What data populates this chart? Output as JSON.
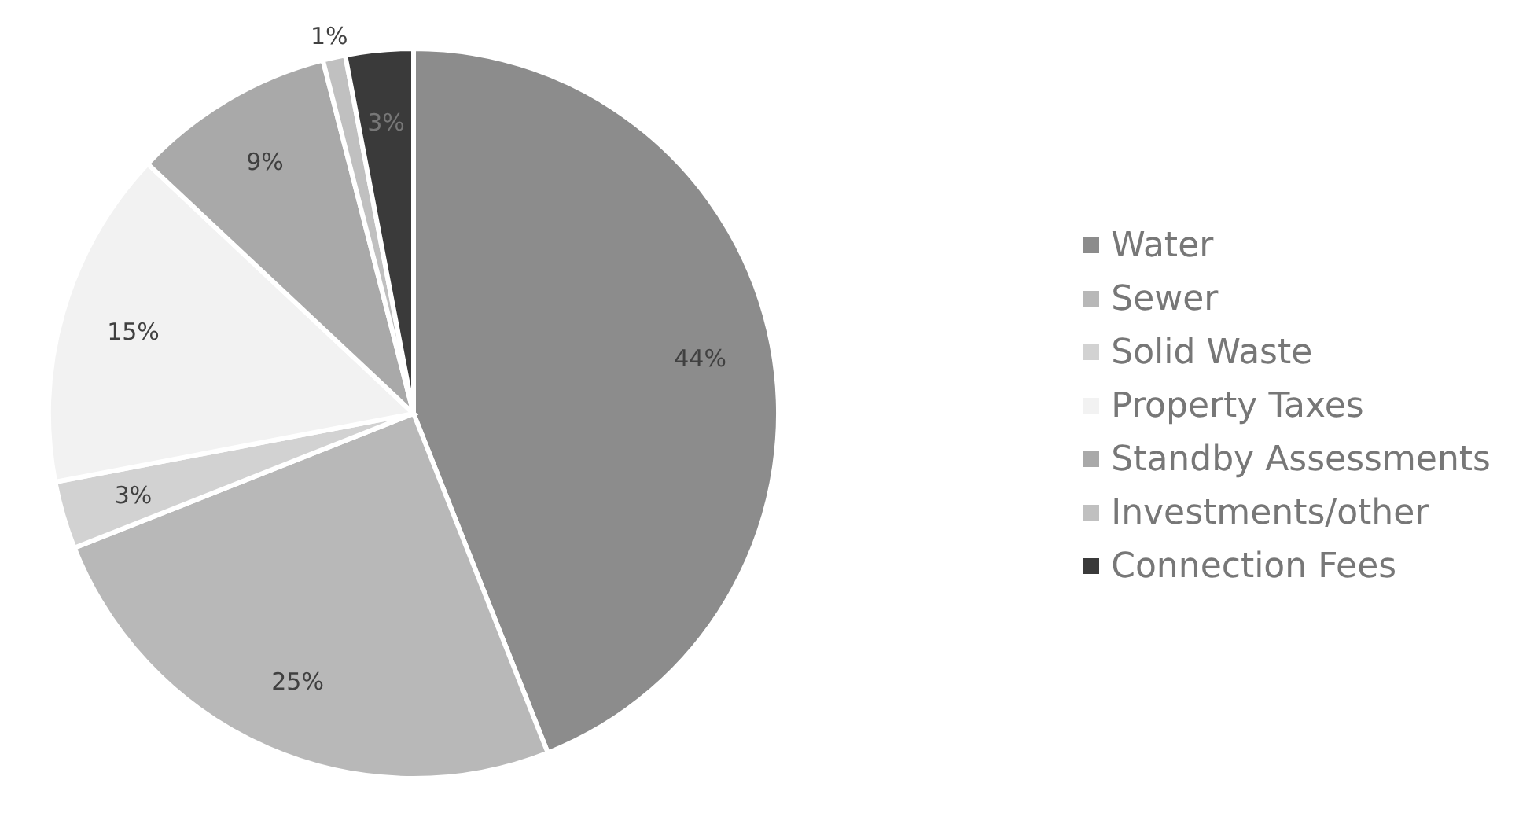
{
  "chart_data": {
    "type": "pie",
    "categories": [
      "Water",
      "Sewer",
      "Solid Waste",
      "Property Taxes",
      "Standby Assessments",
      "Investments/other",
      "Connection Fees"
    ],
    "values": [
      44,
      25,
      3,
      15,
      9,
      1,
      3
    ],
    "colors": [
      "#8c8c8c",
      "#b8b8b8",
      "#d2d2d2",
      "#f2f2f2",
      "#a9a9a9",
      "#c0c0c0",
      "#3a3a3a"
    ],
    "value_labels": [
      "44%",
      "25%",
      "3%",
      "15%",
      "9%",
      "1%",
      "3%"
    ],
    "legend": "right"
  }
}
